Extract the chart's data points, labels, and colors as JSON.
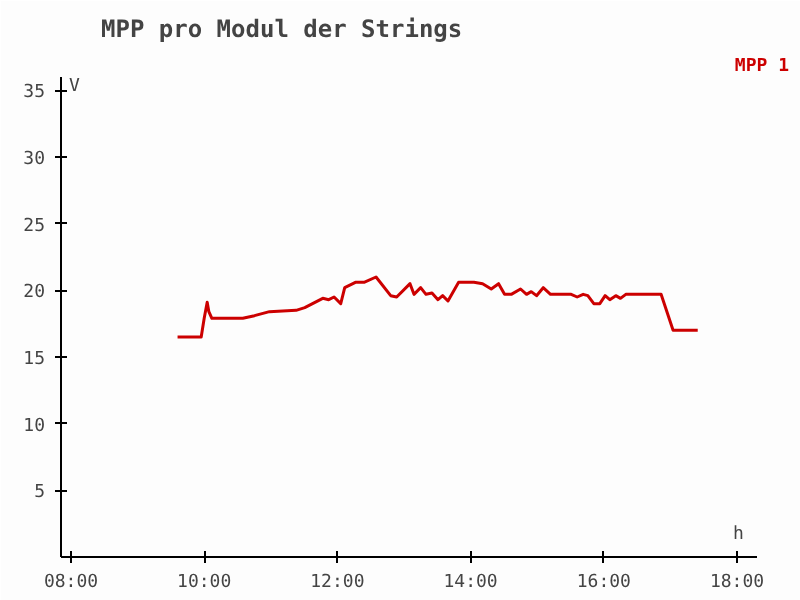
{
  "chart_data": {
    "type": "line",
    "title": "MPP pro Modul der Strings",
    "xlabel": "h",
    "ylabel": "V",
    "x": [
      9.6,
      9.955,
      10.0,
      10.045,
      10.07,
      10.115,
      10.58,
      10.755,
      10.98,
      11.38,
      11.51,
      11.78,
      11.87,
      11.95,
      12.05,
      12.11,
      12.27,
      12.4,
      12.58,
      12.8,
      12.89,
      13.09,
      13.15,
      13.25,
      13.33,
      13.42,
      13.51,
      13.58,
      13.66,
      13.82,
      14.05,
      14.18,
      14.31,
      14.42,
      14.51,
      14.61,
      14.75,
      14.84,
      14.91,
      14.99,
      15.09,
      15.2,
      15.51,
      15.6,
      15.69,
      15.76,
      15.85,
      15.94,
      16.02,
      16.09,
      16.18,
      16.25,
      16.33,
      16.49,
      16.86,
      17.04,
      17.41
    ],
    "series": [
      {
        "name": "MPP 1",
        "color": "#cc0000",
        "values": [
          16.5,
          16.5,
          17.9,
          19.1,
          18.4,
          17.9,
          17.9,
          18.1,
          18.4,
          18.5,
          18.7,
          19.4,
          19.3,
          19.5,
          19.0,
          20.2,
          20.6,
          20.6,
          21.0,
          19.6,
          19.5,
          20.5,
          19.7,
          20.2,
          19.7,
          19.8,
          19.3,
          19.6,
          19.2,
          20.6,
          20.6,
          20.5,
          20.1,
          20.5,
          19.7,
          19.7,
          20.1,
          19.7,
          19.9,
          19.6,
          20.2,
          19.7,
          19.7,
          19.5,
          19.7,
          19.6,
          19.0,
          19.0,
          19.6,
          19.3,
          19.6,
          19.4,
          19.7,
          19.7,
          19.7,
          17.0,
          17.0
        ]
      }
    ],
    "xlim": [
      7.85,
      18.3
    ],
    "ylim": [
      0,
      36
    ],
    "xticks": [
      {
        "value": 8,
        "label": "08:00"
      },
      {
        "value": 10,
        "label": "10:00"
      },
      {
        "value": 12,
        "label": "12:00"
      },
      {
        "value": 14,
        "label": "14:00"
      },
      {
        "value": 16,
        "label": "16:00"
      },
      {
        "value": 18,
        "label": "18:00"
      }
    ],
    "yticks": [
      5,
      10,
      15,
      20,
      25,
      30,
      35
    ],
    "grid": false,
    "line_style": "solid"
  }
}
